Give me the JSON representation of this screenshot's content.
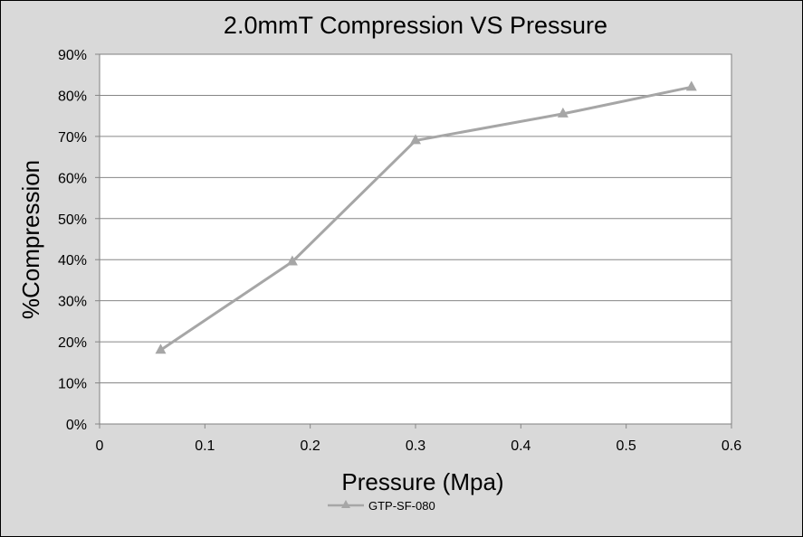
{
  "chart_data": {
    "type": "line",
    "title": "2.0mmT Compression VS Pressure",
    "xlabel": "Pressure (Mpa)",
    "ylabel": "%Compression",
    "xlim": [
      0,
      0.6
    ],
    "ylim": [
      0,
      0.9
    ],
    "x_ticks": [
      "0",
      "0.1",
      "0.2",
      "0.3",
      "0.4",
      "0.5",
      "0.6"
    ],
    "y_ticks": [
      "0%",
      "10%",
      "20%",
      "30%",
      "40%",
      "50%",
      "60%",
      "70%",
      "80%",
      "90%"
    ],
    "grid": true,
    "legend_position": "bottom",
    "series": [
      {
        "name": "GTP-SF-080",
        "color": "#a6a6a6",
        "marker": "triangle",
        "x": [
          0.058,
          0.183,
          0.3,
          0.44,
          0.562
        ],
        "y": [
          0.18,
          0.395,
          0.69,
          0.755,
          0.82
        ]
      }
    ]
  }
}
